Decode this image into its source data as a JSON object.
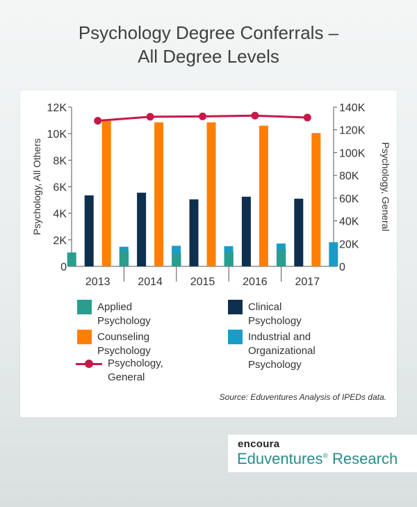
{
  "title_line1": "Psychology Degree Conferrals –",
  "title_line2": "All Degree Levels",
  "source": "Source: Eduventures Analysis of IPEDs data.",
  "logo": {
    "brand": "encoura",
    "name": "Eduventures",
    "reg": "®",
    "suffix": " Research"
  },
  "colors": {
    "applied": "#2a9d8f",
    "clinical": "#0f2f4f",
    "counseling": "#ff8000",
    "industrial": "#1a9cc8",
    "general": "#c8184a",
    "logo_accent": "#2b8a8a"
  },
  "chart_data": {
    "type": "bar",
    "categories": [
      "2013",
      "2014",
      "2015",
      "2016",
      "2017"
    ],
    "ylabel_left": "Psychology, All Others",
    "ylabel_right": "Psychology, General",
    "left_axis": {
      "range": [
        0,
        12000
      ],
      "ticks": [
        0,
        2000,
        4000,
        6000,
        8000,
        10000,
        12000
      ],
      "tick_labels": [
        "0",
        "2K",
        "4K",
        "6K",
        "8K",
        "10K",
        "12K"
      ]
    },
    "right_axis": {
      "range": [
        0,
        140000
      ],
      "ticks": [
        0,
        20000,
        40000,
        60000,
        80000,
        100000,
        120000,
        140000
      ],
      "tick_labels": [
        "0",
        "20K",
        "40K",
        "60K",
        "80K",
        "100K",
        "120K",
        "140K"
      ]
    },
    "series": [
      {
        "name": "Applied Psychology",
        "axis": "left",
        "color": "#2a9d8f",
        "values": [
          1050,
          1200,
          950,
          1100,
          1280
        ]
      },
      {
        "name": "Clinical Psychology",
        "axis": "left",
        "color": "#0f2f4f",
        "values": [
          5350,
          5550,
          5050,
          5250,
          5100
        ]
      },
      {
        "name": "Counseling Psychology",
        "axis": "left",
        "color": "#ff8000",
        "values": [
          10950,
          10850,
          10850,
          10600,
          10050
        ]
      },
      {
        "name": "Industrial and Organizational Psychology",
        "axis": "left",
        "color": "#1a9cc8",
        "values": [
          1480,
          1550,
          1520,
          1720,
          1820
        ]
      },
      {
        "name": "Psychology, General",
        "axis": "right",
        "type": "line",
        "color": "#c8184a",
        "values": [
          128000,
          131500,
          131800,
          132500,
          130800
        ]
      }
    ],
    "legend": [
      {
        "label": "Applied Psychology",
        "kind": "swatch",
        "color": "#2a9d8f"
      },
      {
        "label": "Clinical Psychology",
        "kind": "swatch",
        "color": "#0f2f4f"
      },
      {
        "label": "Counseling Psychology",
        "kind": "swatch",
        "color": "#ff8000"
      },
      {
        "label_lines": [
          "Industrial and",
          "Organizational Psychology"
        ],
        "kind": "swatch",
        "color": "#1a9cc8"
      },
      {
        "label": "Psychology, General",
        "kind": "line",
        "color": "#c8184a"
      }
    ],
    "grid": false,
    "legend_position": "bottom"
  }
}
